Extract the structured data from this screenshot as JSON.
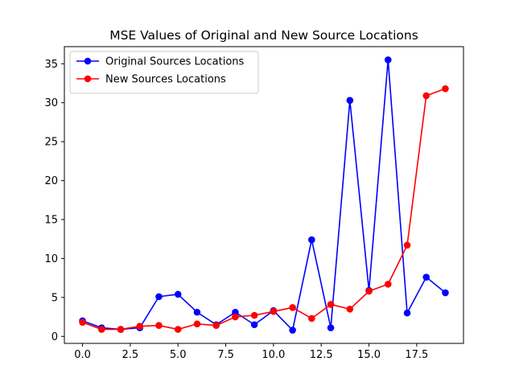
{
  "chart_data": {
    "type": "line",
    "title": "MSE Values of Original and New Source Locations",
    "xlabel": "",
    "ylabel": "",
    "xlim": [
      -0.95,
      19.95
    ],
    "ylim": [
      -0.9,
      37.2
    ],
    "x_ticks": [
      0.0,
      2.5,
      5.0,
      7.5,
      10.0,
      12.5,
      15.0,
      17.5
    ],
    "x_tick_labels": [
      "0.0",
      "2.5",
      "5.0",
      "7.5",
      "10.0",
      "12.5",
      "15.0",
      "17.5"
    ],
    "y_ticks": [
      0,
      5,
      10,
      15,
      20,
      25,
      30,
      35
    ],
    "y_tick_labels": [
      "0",
      "5",
      "10",
      "15",
      "20",
      "25",
      "30",
      "35"
    ],
    "grid": false,
    "legend_position": "top-left",
    "x": [
      0,
      1,
      2,
      3,
      4,
      5,
      6,
      7,
      8,
      9,
      10,
      11,
      12,
      13,
      14,
      15,
      16,
      17,
      18,
      19
    ],
    "series": [
      {
        "name": "Original Sources Locations",
        "color": "#0000ff",
        "marker": "circle",
        "values": [
          2.0,
          1.1,
          0.9,
          1.1,
          5.1,
          5.4,
          3.1,
          1.5,
          3.1,
          1.5,
          3.3,
          0.8,
          12.4,
          1.1,
          30.3,
          5.9,
          35.5,
          3.0,
          7.6,
          5.6
        ]
      },
      {
        "name": "New Sources Locations",
        "color": "#ff0000",
        "marker": "circle",
        "values": [
          1.8,
          0.9,
          0.9,
          1.3,
          1.4,
          0.9,
          1.6,
          1.4,
          2.5,
          2.7,
          3.2,
          3.7,
          2.3,
          4.1,
          3.5,
          5.8,
          6.7,
          11.7,
          30.9,
          31.8
        ]
      }
    ]
  }
}
